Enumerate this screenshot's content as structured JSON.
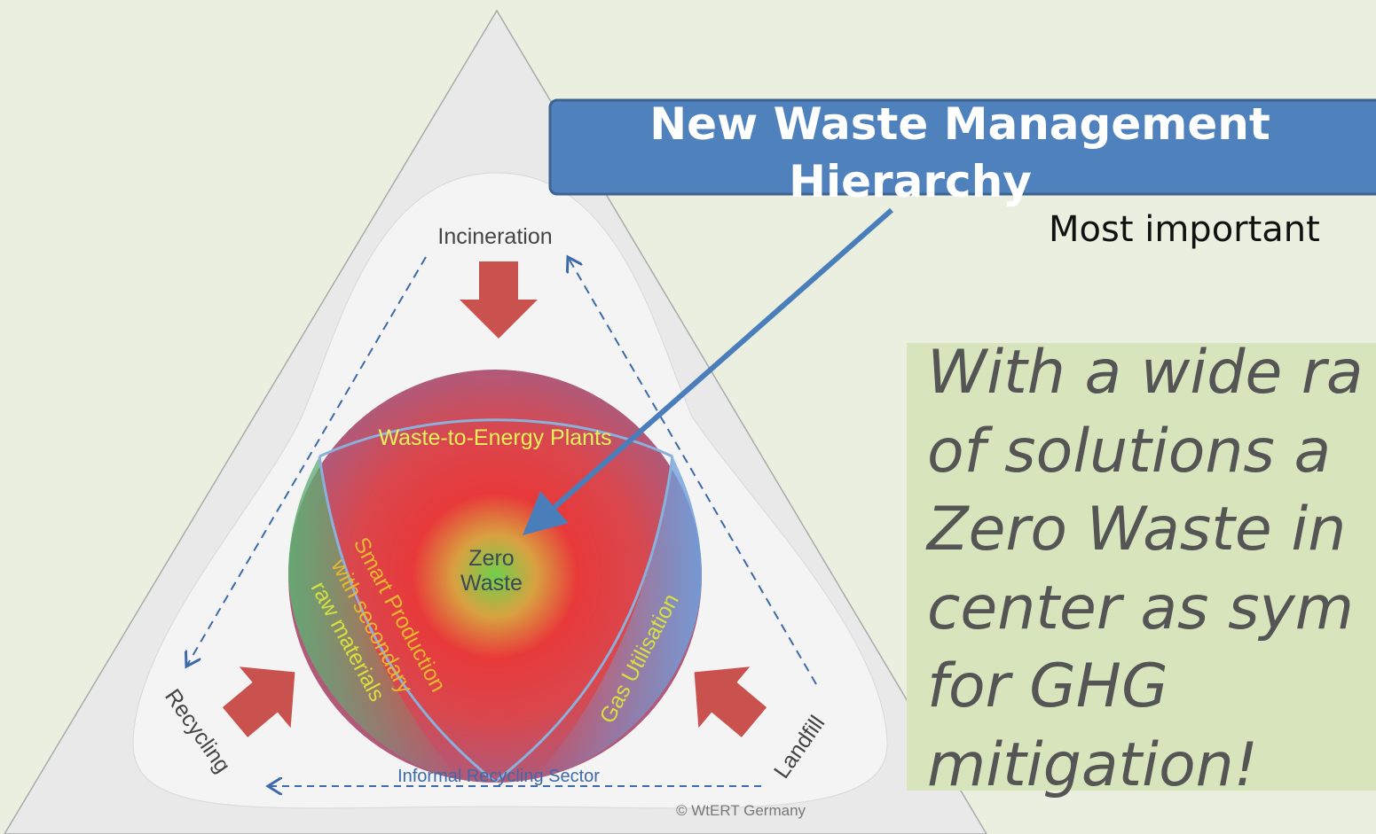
{
  "header": {
    "title_lines": [
      "New Waste Management",
      "Hierarchy"
    ],
    "note": "Most important"
  },
  "description": {
    "lines": [
      "With a wide ra",
      "of solutions a",
      "Zero Waste in",
      "center as sym",
      "for GHG",
      "mitigation!"
    ]
  },
  "diagram": {
    "corners": {
      "top": "Incineration",
      "left": "Recycling",
      "right": "Landfill"
    },
    "segments": {
      "top": "Waste-to-Energy Plants",
      "left_lines": [
        "Smart Production",
        "with secondary",
        "raw materials"
      ],
      "right": "Gas Utilisation"
    },
    "center_lines": [
      "Zero",
      "Waste"
    ],
    "bottom": "Informal Recycling Sector",
    "credit": "© WtERT Germany"
  }
}
